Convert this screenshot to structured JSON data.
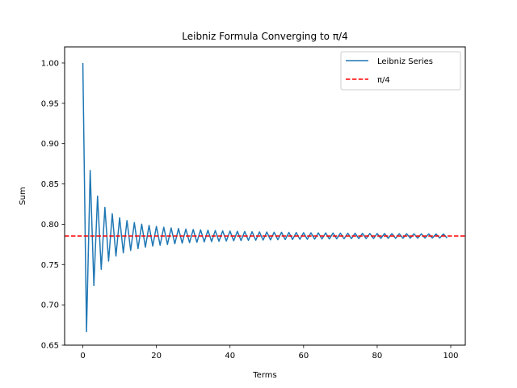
{
  "chart_data": {
    "type": "line",
    "title": "Leibniz Formula Converging to π/4",
    "xlabel": "Terms",
    "ylabel": "Sum",
    "xlim": [
      -4.95,
      103.95
    ],
    "ylim": [
      0.65,
      1.02
    ],
    "xticks": [
      0,
      20,
      40,
      60,
      80,
      100
    ],
    "yticks": [
      0.65,
      0.7,
      0.75,
      0.8,
      0.85,
      0.9,
      0.95,
      1.0
    ],
    "grid": false,
    "legend_position": "top-right",
    "series": [
      {
        "name": "Leibniz Series",
        "color": "#1f77b4",
        "style": "solid",
        "x": [
          0,
          1,
          2,
          3,
          4,
          5,
          6,
          7,
          8,
          9,
          10,
          11,
          12,
          13,
          14,
          15,
          16,
          17,
          18,
          19,
          20,
          21,
          22,
          23,
          24,
          25,
          26,
          27,
          28,
          29,
          30,
          31,
          32,
          33,
          34,
          35,
          36,
          37,
          38,
          39,
          40,
          41,
          42,
          43,
          44,
          45,
          46,
          47,
          48,
          49,
          50,
          51,
          52,
          53,
          54,
          55,
          56,
          57,
          58,
          59,
          60,
          61,
          62,
          63,
          64,
          65,
          66,
          67,
          68,
          69,
          70,
          71,
          72,
          73,
          74,
          75,
          76,
          77,
          78,
          79,
          80,
          81,
          82,
          83,
          84,
          85,
          86,
          87,
          88,
          89,
          90,
          91,
          92,
          93,
          94,
          95,
          96,
          97,
          98,
          99
        ],
        "values": [
          1.0,
          0.6667,
          0.8667,
          0.7238,
          0.8349,
          0.744,
          0.8209,
          0.7543,
          0.8131,
          0.7605,
          0.8081,
          0.7646,
          0.8046,
          0.7675,
          0.802,
          0.7698,
          0.8001,
          0.7715,
          0.7985,
          0.7729,
          0.7973,
          0.774,
          0.7963,
          0.775,
          0.7954,
          0.7758,
          0.7947,
          0.7765,
          0.794,
          0.7771,
          0.7935,
          0.7776,
          0.793,
          0.7781,
          0.7926,
          0.7785,
          0.7922,
          0.7788,
          0.7918,
          0.7792,
          0.7915,
          0.7795,
          0.7912,
          0.7797,
          0.791,
          0.78,
          0.7907,
          0.7802,
          0.7905,
          0.7804,
          0.7903,
          0.7806,
          0.7901,
          0.7808,
          0.79,
          0.781,
          0.7898,
          0.7811,
          0.7897,
          0.7813,
          0.7895,
          0.7814,
          0.7894,
          0.7815,
          0.7893,
          0.7817,
          0.7892,
          0.7818,
          0.7891,
          0.7819,
          0.789,
          0.782,
          0.7889,
          0.7821,
          0.7888,
          0.7822,
          0.7887,
          0.7822,
          0.7886,
          0.7823,
          0.7885,
          0.7824,
          0.7885,
          0.7825,
          0.7884,
          0.7825,
          0.7883,
          0.7826,
          0.7883,
          0.7827,
          0.7882,
          0.7827,
          0.7881,
          0.7828,
          0.7881,
          0.7829,
          0.788,
          0.7829,
          0.788,
          0.7829
        ]
      },
      {
        "name": "π/4",
        "color": "#ff0000",
        "style": "dashed",
        "hline": 0.7854
      }
    ]
  }
}
